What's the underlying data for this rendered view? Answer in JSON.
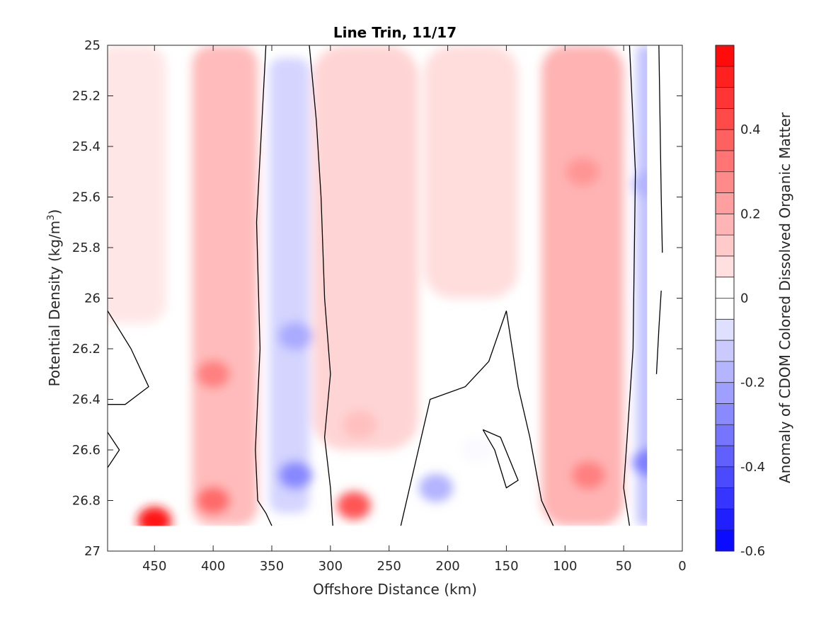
{
  "chart_data": {
    "type": "heatmap",
    "subtype": "filled-contour",
    "title": "Line Trin, 11/17",
    "xlabel": "Offshore Distance (km)",
    "ylabel_main": "Potential Density (kg/m",
    "ylabel_sup": "3",
    "ylabel_close": ")",
    "xlim": [
      490,
      0
    ],
    "x_reversed": true,
    "ylim": [
      25,
      27
    ],
    "y_reversed": true,
    "x_ticks": [
      450,
      400,
      350,
      300,
      250,
      200,
      150,
      100,
      50,
      0
    ],
    "x_tick_labels": [
      "450",
      "400",
      "350",
      "300",
      "250",
      "200",
      "150",
      "100",
      "50",
      "0"
    ],
    "y_ticks": [
      25,
      25.2,
      25.4,
      25.6,
      25.8,
      26,
      26.2,
      26.4,
      26.6,
      26.8,
      27
    ],
    "y_tick_labels": [
      "25",
      "25.2",
      "25.4",
      "25.6",
      "25.8",
      "26",
      "26.2",
      "26.4",
      "26.6",
      "26.8",
      "27"
    ],
    "data_extent": {
      "x": [
        490,
        30
      ],
      "y": [
        25,
        26.9
      ]
    },
    "colorbar": {
      "label": "Anomaly of CDOM Colored Dissolved Organic Matter",
      "range": [
        -0.6,
        0.6
      ],
      "levels": [
        -0.6,
        -0.55,
        -0.5,
        -0.45,
        -0.4,
        -0.35,
        -0.3,
        -0.25,
        -0.2,
        -0.15,
        -0.1,
        -0.05,
        0,
        0.05,
        0.1,
        0.15,
        0.2,
        0.25,
        0.3,
        0.35,
        0.4,
        0.45,
        0.5,
        0.55,
        0.6
      ],
      "ticks": [
        0.4,
        0.2,
        0,
        -0.2,
        -0.4,
        -0.6
      ],
      "tick_labels": [
        "0.4",
        "0.2",
        "0",
        "-0.2",
        "-0.4",
        "-0.6"
      ],
      "colormap": "blue-white-red",
      "negative_color": "#0000ff",
      "zero_color": "#ffffff",
      "positive_color": "#ff0000"
    },
    "contour_line_level": 0,
    "features": [
      {
        "name": "positive-band-470",
        "x_center": 470,
        "x_halfwidth": 30,
        "y_top": 25.0,
        "y_bottom": 26.1,
        "value": 0.06
      },
      {
        "name": "positive-band-390",
        "x_center": 390,
        "x_halfwidth": 28,
        "y_top": 25.0,
        "y_bottom": 26.9,
        "value": 0.16
      },
      {
        "name": "negative-band-335",
        "x_center": 335,
        "x_halfwidth": 17,
        "y_top": 25.05,
        "y_bottom": 26.85,
        "value": -0.1
      },
      {
        "name": "positive-band-270",
        "x_center": 270,
        "x_halfwidth": 45,
        "y_top": 25.0,
        "y_bottom": 26.6,
        "value": 0.1
      },
      {
        "name": "positive-band-180",
        "x_center": 180,
        "x_halfwidth": 40,
        "y_top": 25.0,
        "y_bottom": 26.0,
        "value": 0.08
      },
      {
        "name": "positive-band-85",
        "x_center": 85,
        "x_halfwidth": 35,
        "y_top": 25.0,
        "y_bottom": 26.9,
        "value": 0.18
      },
      {
        "name": "negative-band-30",
        "x_center": 30,
        "x_halfwidth": 9,
        "y_top": 25.0,
        "y_bottom": 26.9,
        "value": -0.14
      },
      {
        "name": "positive-blob-400-26.3",
        "x": 400,
        "y": 26.3,
        "value": 0.3
      },
      {
        "name": "positive-blob-450-26.88",
        "x": 450,
        "y": 26.88,
        "value": 0.55
      },
      {
        "name": "positive-blob-400-26.8",
        "x": 400,
        "y": 26.8,
        "value": 0.35
      },
      {
        "name": "positive-blob-280-26.82",
        "x": 280,
        "y": 26.82,
        "value": 0.4
      },
      {
        "name": "positive-blob-80-26.7",
        "x": 80,
        "y": 26.7,
        "value": 0.3
      },
      {
        "name": "positive-core-85-25.5",
        "x": 85,
        "y": 25.5,
        "value": 0.25
      },
      {
        "name": "negative-blob-330-26.7",
        "x": 330,
        "y": 26.7,
        "value": -0.28
      },
      {
        "name": "negative-blob-330-26.15",
        "x": 330,
        "y": 26.15,
        "value": -0.2
      },
      {
        "name": "negative-blob-210-26.75",
        "x": 210,
        "y": 26.75,
        "value": -0.18
      },
      {
        "name": "negative-blob-28-26.65",
        "x": 28,
        "y": 26.65,
        "value": -0.3
      },
      {
        "name": "negative-blob-28-25.55",
        "x": 28,
        "y": 25.55,
        "value": -0.18
      },
      {
        "name": "positive-band-270-lower",
        "x": 275,
        "y": 26.5,
        "value": 0.15
      },
      {
        "name": "zero-region-175",
        "x": 175,
        "y": 26.6,
        "value": -0.01
      }
    ],
    "zero_contours": [
      {
        "name": "zero-contour-360",
        "points": [
          [
            355,
            25
          ],
          [
            363,
            25.7
          ],
          [
            360,
            26.2
          ],
          [
            364,
            26.6
          ],
          [
            362,
            26.8
          ],
          [
            355,
            26.85
          ],
          [
            350,
            26.9
          ]
        ]
      },
      {
        "name": "zero-contour-310",
        "points": [
          [
            318,
            25
          ],
          [
            312,
            25.3
          ],
          [
            308,
            25.6
          ],
          [
            305,
            26.0
          ],
          [
            300,
            26.3
          ],
          [
            305,
            26.55
          ],
          [
            300,
            26.75
          ],
          [
            298,
            26.9
          ]
        ]
      },
      {
        "name": "zero-contour-47",
        "points": [
          [
            45,
            25
          ],
          [
            40,
            25.5
          ],
          [
            42,
            26.2
          ],
          [
            47,
            26.55
          ],
          [
            50,
            26.75
          ],
          [
            45,
            26.9
          ]
        ]
      },
      {
        "name": "zero-contour-20",
        "points": [
          [
            20,
            25
          ],
          [
            18,
            25.6
          ],
          [
            17,
            25.82
          ]
        ]
      },
      {
        "name": "zero-contour-20-low",
        "points": [
          [
            18,
            25.97
          ],
          [
            20,
            26.12
          ],
          [
            22,
            26.3
          ]
        ]
      },
      {
        "name": "zero-region-loop",
        "points": [
          [
            240,
            26.9
          ],
          [
            225,
            26.6
          ],
          [
            215,
            26.4
          ],
          [
            185,
            26.35
          ],
          [
            165,
            26.25
          ],
          [
            150,
            26.05
          ],
          [
            140,
            26.35
          ],
          [
            130,
            26.55
          ],
          [
            120,
            26.8
          ],
          [
            110,
            26.9
          ]
        ]
      },
      {
        "name": "zero-loop-small",
        "points": [
          [
            170,
            26.52
          ],
          [
            160,
            26.6
          ],
          [
            150,
            26.75
          ],
          [
            140,
            26.72
          ],
          [
            155,
            26.55
          ],
          [
            170,
            26.52
          ]
        ]
      },
      {
        "name": "zero-contour-west-top",
        "points": [
          [
            490,
            26.05
          ],
          [
            470,
            26.2
          ],
          [
            455,
            26.35
          ],
          [
            475,
            26.42
          ],
          [
            490,
            26.42
          ]
        ]
      },
      {
        "name": "zero-contour-west-bottom",
        "points": [
          [
            490,
            26.53
          ],
          [
            480,
            26.6
          ],
          [
            490,
            26.67
          ]
        ]
      }
    ]
  }
}
